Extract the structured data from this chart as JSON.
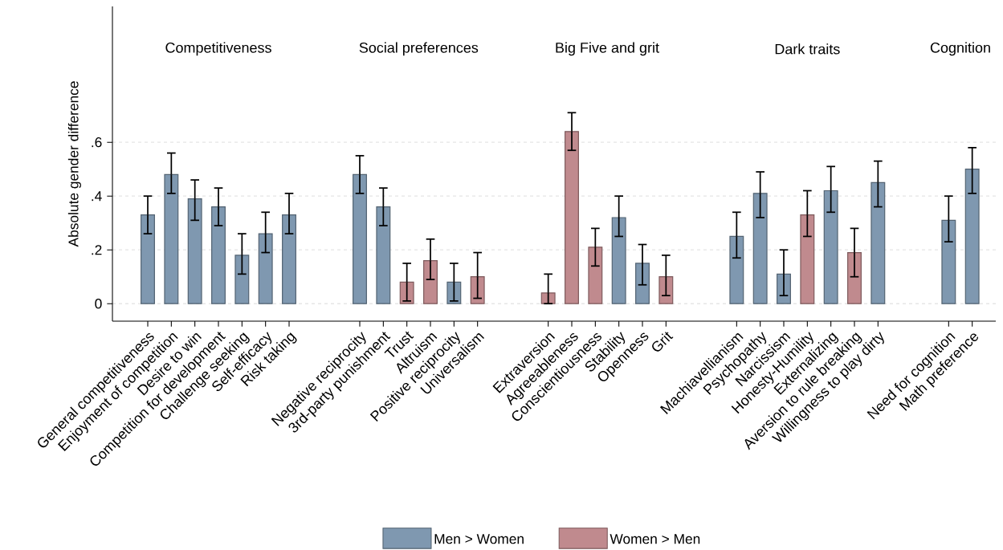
{
  "chart_data": {
    "type": "bar",
    "ylabel": "Absolute gender difference",
    "categories": [
      "General competitiveness",
      "Enjoyment of competition",
      "Desire to win",
      "Competition for development",
      "Challenge seeking",
      "Self-efficacy",
      "Risk taking",
      null,
      null,
      "Negative reciprocity",
      "3rd-party punishment",
      "Trust",
      "Altruism",
      "Positive reciprocity",
      "Universalism",
      null,
      null,
      "Extraversion",
      "Agreeableness",
      "Conscientiousness",
      "Stability",
      "Openness",
      "Grit",
      null,
      null,
      "Machiavellianism",
      "Psychopathy",
      "Narcissism",
      "Honesty-Humility",
      "Externalizing",
      "Aversion to rule breaking",
      "Willingness to play dirty",
      null,
      null,
      "Need for cognition",
      "Math preference"
    ],
    "series": [
      {
        "name": "Men > Women",
        "color": "#7f98b0",
        "values": [
          0.33,
          0.48,
          0.39,
          0.36,
          0.18,
          0.26,
          0.33,
          null,
          null,
          0.48,
          0.36,
          null,
          null,
          0.08,
          null,
          null,
          null,
          null,
          null,
          null,
          0.32,
          0.15,
          null,
          null,
          null,
          0.25,
          0.41,
          0.11,
          null,
          0.42,
          null,
          0.45,
          null,
          null,
          0.31,
          0.5
        ],
        "errors": [
          [
            0.26,
            0.4
          ],
          [
            0.41,
            0.56
          ],
          [
            0.31,
            0.46
          ],
          [
            0.29,
            0.43
          ],
          [
            0.11,
            0.26
          ],
          [
            0.19,
            0.34
          ],
          [
            0.26,
            0.41
          ],
          null,
          null,
          [
            0.41,
            0.55
          ],
          [
            0.29,
            0.43
          ],
          null,
          null,
          [
            0.01,
            0.15
          ],
          null,
          null,
          null,
          null,
          null,
          null,
          [
            0.25,
            0.4
          ],
          [
            0.07,
            0.22
          ],
          null,
          null,
          null,
          [
            0.17,
            0.34
          ],
          [
            0.32,
            0.49
          ],
          [
            0.03,
            0.2
          ],
          null,
          [
            0.34,
            0.51
          ],
          null,
          [
            0.36,
            0.53
          ],
          null,
          null,
          [
            0.23,
            0.4
          ],
          [
            0.41,
            0.58
          ]
        ]
      },
      {
        "name": "Women > Men",
        "color": "#c08a8e",
        "values": [
          null,
          null,
          null,
          null,
          null,
          null,
          null,
          null,
          null,
          null,
          null,
          0.08,
          0.16,
          null,
          0.1,
          null,
          null,
          0.04,
          0.64,
          0.21,
          null,
          null,
          0.1,
          null,
          null,
          null,
          null,
          null,
          0.33,
          null,
          0.19,
          null,
          null,
          null,
          null,
          null
        ],
        "errors": [
          null,
          null,
          null,
          null,
          null,
          null,
          null,
          null,
          null,
          null,
          null,
          [
            0.01,
            0.15
          ],
          [
            0.09,
            0.24
          ],
          null,
          [
            0.02,
            0.19
          ],
          null,
          null,
          [
            0.0,
            0.11
          ],
          [
            0.57,
            0.71
          ],
          [
            0.14,
            0.28
          ],
          null,
          null,
          [
            0.03,
            0.18
          ],
          null,
          null,
          null,
          null,
          null,
          [
            0.25,
            0.42
          ],
          null,
          [
            0.1,
            0.28
          ],
          null,
          null,
          null,
          null,
          null
        ]
      }
    ],
    "annotations": [
      "Competitiveness",
      "Social preferences",
      "Big Five and grit",
      "Dark traits",
      "Cognition"
    ],
    "ylim": [
      -0.065,
      1.105
    ],
    "yticks": [
      0,
      {
        "value": 0.2,
        "label": ".2"
      },
      {
        "value": 0.4,
        "label": ".4"
      },
      {
        "value": 0.6,
        "label": ".6"
      }
    ],
    "grid": "y",
    "legend": "bottom"
  }
}
